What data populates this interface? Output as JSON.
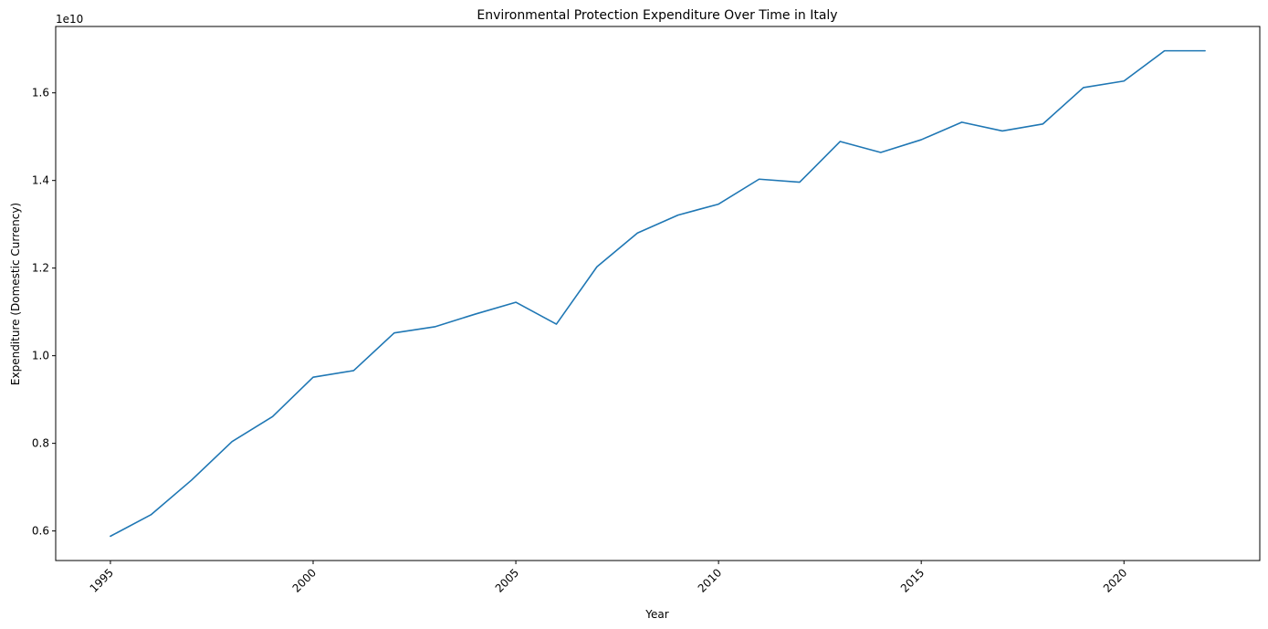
{
  "chart_data": {
    "type": "line",
    "title": "Environmental Protection Expenditure Over Time in Italy",
    "xlabel": "Year",
    "ylabel": "Expenditure (Domestic Currency)",
    "y_offset_label": "1e10",
    "x": [
      1995,
      1996,
      1997,
      1998,
      1999,
      2000,
      2001,
      2002,
      2003,
      2004,
      2005,
      2006,
      2007,
      2008,
      2009,
      2010,
      2011,
      2012,
      2013,
      2014,
      2015,
      2016,
      2017,
      2018,
      2019,
      2020,
      2021,
      2022
    ],
    "series": [
      {
        "color": "#1f77b4",
        "values": [
          5880000000,
          6370000000,
          7160000000,
          8040000000,
          8610000000,
          9510000000,
          9660000000,
          10520000000,
          10660000000,
          10950000000,
          11220000000,
          10720000000,
          12030000000,
          12800000000,
          13210000000,
          13460000000,
          14030000000,
          13960000000,
          14890000000,
          14640000000,
          14930000000,
          15330000000,
          15130000000,
          15290000000,
          16120000000,
          16270000000,
          16960000000,
          16960000000
        ]
      }
    ],
    "xlim": [
      1993.65,
      2023.35
    ],
    "ylim": [
      5325000000,
      17515000000
    ],
    "xticks": [
      1995,
      2000,
      2005,
      2010,
      2015,
      2020
    ],
    "xtick_labels": [
      "1995",
      "2000",
      "2005",
      "2010",
      "2015",
      "2020"
    ],
    "yticks": [
      6000000000,
      8000000000,
      10000000000,
      12000000000,
      14000000000,
      16000000000
    ],
    "ytick_labels": [
      "0.6",
      "0.8",
      "1.0",
      "1.2",
      "1.4",
      "1.6"
    ],
    "grid": false,
    "legend": "none"
  }
}
